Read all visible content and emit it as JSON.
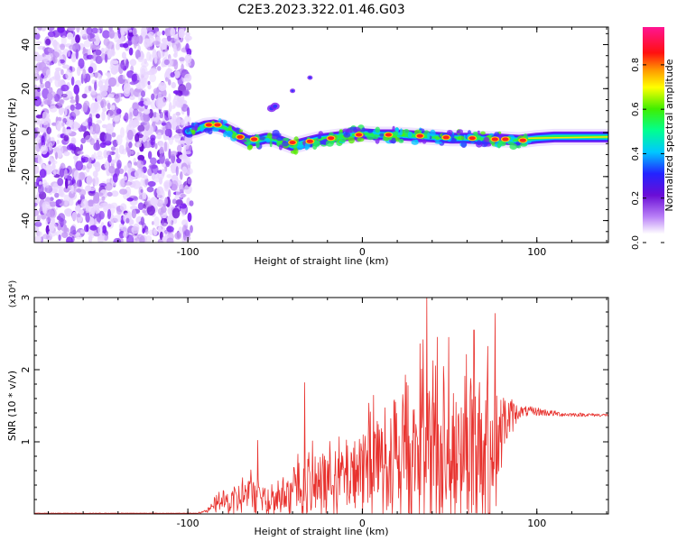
{
  "figure": {
    "title": "C2E3.2023.322.01.46.G03"
  },
  "chart_data": [
    {
      "type": "heatmap",
      "xlabel": "Height of straight line (km)",
      "ylabel": "Frequency (Hz)",
      "xlim": [
        -188,
        141
      ],
      "ylim": [
        -50,
        48
      ],
      "xticks": [
        -100,
        0,
        100
      ],
      "yticks": [
        -40,
        -20,
        0,
        20,
        40
      ],
      "grid": false,
      "colorbar": {
        "label": "Normalized spectral amplitude",
        "range": [
          0,
          0.97
        ],
        "ticks": [
          0.0,
          0.2,
          0.4,
          0.6,
          0.8
        ],
        "colormap": [
          "#ffffff",
          "#cc99ff",
          "#7a1cf2",
          "#3333ff",
          "#00c8ff",
          "#00ff80",
          "#55ee00",
          "#ffff00",
          "#ffa000",
          "#ff1010",
          "#ff0066",
          "#ff1493"
        ]
      },
      "noise_region": {
        "x_range": [
          -188,
          -100
        ],
        "color_levels": [
          "#e9d6ff",
          "#c69bf6",
          "#9a55f0",
          "#7a1cf2",
          "#6a0dd6"
        ]
      },
      "ridge": [
        {
          "x": -100,
          "y": 0.5
        },
        {
          "x": -95,
          "y": 1.5
        },
        {
          "x": -90,
          "y": 3
        },
        {
          "x": -85,
          "y": 3.5
        },
        {
          "x": -80,
          "y": 2.5
        },
        {
          "x": -75,
          "y": 0.5
        },
        {
          "x": -70,
          "y": -2
        },
        {
          "x": -65,
          "y": -4
        },
        {
          "x": -60,
          "y": -3.5
        },
        {
          "x": -55,
          "y": -2.5
        },
        {
          "x": -50,
          "y": -3
        },
        {
          "x": -45,
          "y": -4.5
        },
        {
          "x": -40,
          "y": -6
        },
        {
          "x": -35,
          "y": -5
        },
        {
          "x": -30,
          "y": -4
        },
        {
          "x": -25,
          "y": -3
        },
        {
          "x": -20,
          "y": -2.5
        },
        {
          "x": -15,
          "y": -2
        },
        {
          "x": -10,
          "y": -1.5
        },
        {
          "x": -5,
          "y": -1
        },
        {
          "x": 0,
          "y": -0.5
        },
        {
          "x": 10,
          "y": -1
        },
        {
          "x": 20,
          "y": -1
        },
        {
          "x": 30,
          "y": -1.5
        },
        {
          "x": 40,
          "y": -2
        },
        {
          "x": 50,
          "y": -2.5
        },
        {
          "x": 60,
          "y": -2.5
        },
        {
          "x": 70,
          "y": -3
        },
        {
          "x": 80,
          "y": -3
        },
        {
          "x": 90,
          "y": -3.5
        },
        {
          "x": 100,
          "y": -2.5
        },
        {
          "x": 110,
          "y": -2
        },
        {
          "x": 120,
          "y": -2
        },
        {
          "x": 130,
          "y": -2
        },
        {
          "x": 141,
          "y": -2
        }
      ],
      "hot_spots": [
        {
          "x": -88,
          "y": 3.5
        },
        {
          "x": -83,
          "y": 3.5
        },
        {
          "x": -70,
          "y": -2
        },
        {
          "x": -62,
          "y": -3
        },
        {
          "x": -40,
          "y": -4.5
        },
        {
          "x": -30,
          "y": -4
        },
        {
          "x": -18,
          "y": -2.5
        },
        {
          "x": -2,
          "y": -1
        },
        {
          "x": 15,
          "y": -1
        },
        {
          "x": 33,
          "y": -1.5
        },
        {
          "x": 48,
          "y": -2.2
        },
        {
          "x": 63,
          "y": -2.5
        },
        {
          "x": 76,
          "y": -3
        },
        {
          "x": 82,
          "y": -3
        },
        {
          "x": 92,
          "y": -3.5
        }
      ],
      "harmonic_blobs": [
        {
          "x": -52,
          "y": 11
        },
        {
          "x": -50,
          "y": 12
        },
        {
          "x": -40,
          "y": 19
        },
        {
          "x": -30,
          "y": 25
        }
      ]
    },
    {
      "type": "line",
      "xlabel": "Height of straight line (km)",
      "ylabel": "SNR (10 * v/v)",
      "multiplier_label": "(x10⁴)",
      "xlim": [
        -188,
        141
      ],
      "ylim": [
        0,
        3
      ],
      "xticks": [
        -100,
        0,
        100
      ],
      "yticks": [
        1,
        2,
        3
      ],
      "grid": false,
      "series": [
        {
          "color": "#e8322e",
          "envelope": [
            {
              "x": -188,
              "base": 0.01,
              "amp": 0.005
            },
            {
              "x": -95,
              "base": 0.01,
              "amp": 0.005
            },
            {
              "x": -88,
              "base": 0.05,
              "amp": 0.05
            },
            {
              "x": -82,
              "base": 0.18,
              "amp": 0.2
            },
            {
              "x": -76,
              "base": 0.15,
              "amp": 0.25
            },
            {
              "x": -68,
              "base": 0.25,
              "amp": 0.35
            },
            {
              "x": -62,
              "base": 0.3,
              "amp": 0.45
            },
            {
              "x": -55,
              "base": 0.2,
              "amp": 0.35
            },
            {
              "x": -45,
              "base": 0.25,
              "amp": 0.4
            },
            {
              "x": -35,
              "base": 0.35,
              "amp": 0.7
            },
            {
              "x": -25,
              "base": 0.4,
              "amp": 0.6
            },
            {
              "x": -15,
              "base": 0.5,
              "amp": 0.6
            },
            {
              "x": -5,
              "base": 0.6,
              "amp": 0.8
            },
            {
              "x": 5,
              "base": 0.7,
              "amp": 1.0
            },
            {
              "x": 15,
              "base": 0.8,
              "amp": 1.2
            },
            {
              "x": 25,
              "base": 0.9,
              "amp": 1.5
            },
            {
              "x": 35,
              "base": 1.0,
              "amp": 1.8
            },
            {
              "x": 45,
              "base": 1.0,
              "amp": 1.7
            },
            {
              "x": 55,
              "base": 1.0,
              "amp": 1.6
            },
            {
              "x": 65,
              "base": 1.0,
              "amp": 1.7
            },
            {
              "x": 75,
              "base": 1.0,
              "amp": 1.6
            },
            {
              "x": 82,
              "base": 1.3,
              "amp": 0.4
            },
            {
              "x": 90,
              "base": 1.42,
              "amp": 0.08
            },
            {
              "x": 100,
              "base": 1.42,
              "amp": 0.06
            },
            {
              "x": 115,
              "base": 1.38,
              "amp": 0.03
            },
            {
              "x": 141,
              "base": 1.37,
              "amp": 0.02
            }
          ],
          "peaks": [
            {
              "x": -60,
              "y": 1.02
            },
            {
              "x": -33,
              "y": 1.82
            },
            {
              "x": 37,
              "y": 3.0
            },
            {
              "x": 43,
              "y": 2.45
            },
            {
              "x": 64,
              "y": 2.55
            },
            {
              "x": 76,
              "y": 2.78
            }
          ]
        }
      ]
    }
  ]
}
